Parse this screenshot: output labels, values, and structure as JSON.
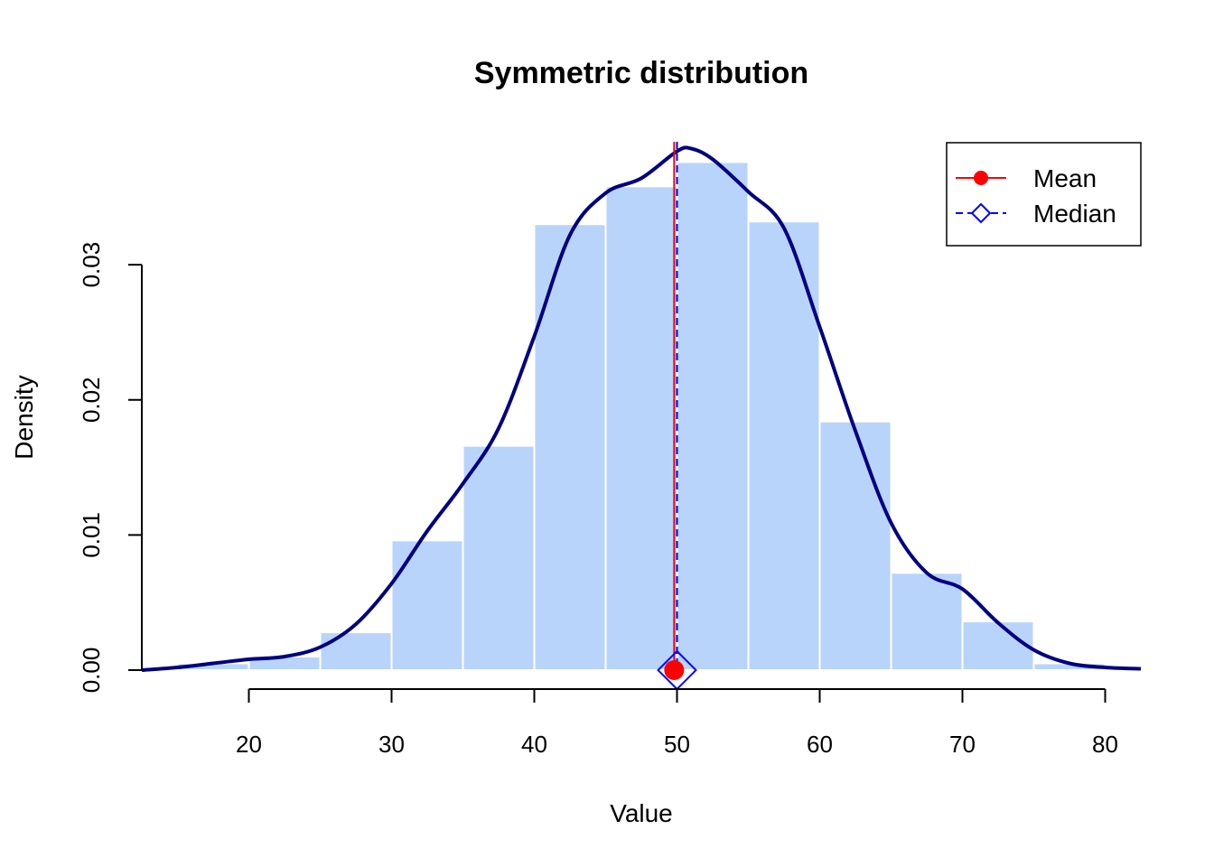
{
  "chart_data": {
    "type": "histogram",
    "title": "Symmetric distribution",
    "xlabel": "Value",
    "ylabel": "Density",
    "xlim": [
      12.5,
      82.5
    ],
    "ylim": [
      0,
      0.0395
    ],
    "x_ticks": [
      20,
      30,
      40,
      50,
      60,
      70,
      80
    ],
    "x_tick_labels": [
      "20",
      "30",
      "40",
      "50",
      "60",
      "70",
      "80"
    ],
    "y_ticks": [
      0,
      0.01,
      0.02,
      0.03
    ],
    "y_tick_labels": [
      "0.00",
      "0.01",
      "0.02",
      "0.03"
    ],
    "grid": false,
    "bins": [
      {
        "x0": 15,
        "x1": 20,
        "density": 0.0005
      },
      {
        "x0": 20,
        "x1": 25,
        "density": 0.001
      },
      {
        "x0": 25,
        "x1": 30,
        "density": 0.0028
      },
      {
        "x0": 30,
        "x1": 35,
        "density": 0.0096
      },
      {
        "x0": 35,
        "x1": 40,
        "density": 0.0166
      },
      {
        "x0": 40,
        "x1": 45,
        "density": 0.033
      },
      {
        "x0": 45,
        "x1": 50,
        "density": 0.0358
      },
      {
        "x0": 50,
        "x1": 55,
        "density": 0.0376
      },
      {
        "x0": 55,
        "x1": 60,
        "density": 0.0332
      },
      {
        "x0": 60,
        "x1": 65,
        "density": 0.0184
      },
      {
        "x0": 65,
        "x1": 70,
        "density": 0.0072
      },
      {
        "x0": 70,
        "x1": 75,
        "density": 0.0036
      },
      {
        "x0": 75,
        "x1": 80,
        "density": 0.0005
      }
    ],
    "density_curve": {
      "x": [
        12.5,
        15,
        17.5,
        20,
        22.5,
        25,
        27.5,
        30,
        32.5,
        35,
        37.5,
        40,
        42.5,
        45,
        47.5,
        50,
        51,
        52.5,
        55,
        57.5,
        60,
        62.5,
        65,
        67.5,
        70,
        72.5,
        75,
        77.5,
        80,
        82.5
      ],
      "y": [
        0.0,
        0.0002,
        0.0005,
        0.0008,
        0.001,
        0.0017,
        0.0034,
        0.0064,
        0.0103,
        0.0138,
        0.0179,
        0.0247,
        0.0322,
        0.0353,
        0.0364,
        0.0384,
        0.0386,
        0.0378,
        0.0354,
        0.0327,
        0.0254,
        0.0177,
        0.0109,
        0.0072,
        0.006,
        0.0035,
        0.0015,
        0.0005,
        0.0002,
        0.0001
      ]
    },
    "mean": 49.8,
    "median": 50.0,
    "colors": {
      "bar_fill": "#b9d4fa",
      "bar_border": "#ffffff",
      "density": "#000080",
      "mean": "#ff0000",
      "median": "#0000ff"
    },
    "legend": {
      "position": "top-right",
      "entries": [
        {
          "label": "Mean",
          "color": "#ff0000",
          "line": "solid",
          "marker": "filled-circle"
        },
        {
          "label": "Median",
          "color": "#0000ff",
          "line": "dashed",
          "marker": "open-diamond"
        }
      ]
    }
  }
}
